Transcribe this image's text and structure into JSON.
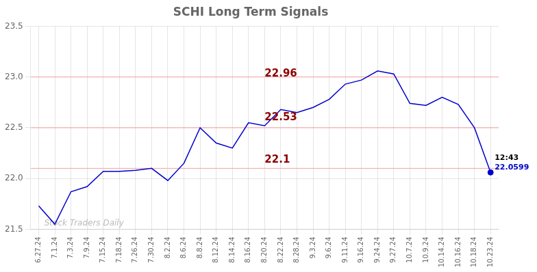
{
  "chart_data": {
    "type": "line",
    "title": "SCHI Long Term Signals",
    "watermark": "Stock Traders Daily",
    "categories": [
      "6.27.24",
      "7.1.24",
      "7.3.24",
      "7.9.24",
      "7.15.24",
      "7.18.24",
      "7.26.24",
      "7.30.24",
      "8.2.24",
      "8.6.24",
      "8.8.24",
      "8.12.24",
      "8.14.24",
      "8.16.24",
      "8.20.24",
      "8.22.24",
      "8.28.24",
      "9.3.24",
      "9.6.24",
      "9.11.24",
      "9.16.24",
      "9.24.24",
      "9.27.24",
      "10.7.24",
      "10.9.24",
      "10.14.24",
      "10.16.24",
      "10.18.24",
      "10.23.24"
    ],
    "values": [
      21.73,
      21.55,
      21.87,
      21.92,
      22.07,
      22.07,
      22.08,
      22.1,
      21.98,
      22.15,
      22.5,
      22.35,
      22.3,
      22.55,
      22.52,
      22.68,
      22.65,
      22.7,
      22.78,
      22.93,
      22.97,
      23.06,
      23.03,
      22.74,
      22.72,
      22.8,
      22.73,
      22.5,
      22.06
    ],
    "color": "#0000cc",
    "ylim": [
      21.5,
      23.5
    ],
    "yticks": [
      21.5,
      {
        "value": 22.0,
        "label": "22.0"
      },
      22.5,
      {
        "value": 23.0,
        "label": "23.0"
      },
      23.5
    ],
    "grid": true,
    "hlines": {
      "values": [
        23.0,
        22.5,
        22.1
      ],
      "color": "#f5a0a0"
    },
    "annotations": [
      {
        "text": "22.96",
        "x": "8.20.24",
        "y": 22.98,
        "color": "darkred"
      },
      {
        "text": "22.53",
        "x": "8.20.24",
        "y": 22.55,
        "color": "darkred"
      },
      {
        "text": "22.1",
        "x": "8.20.24",
        "y": 22.13,
        "color": "darkred"
      }
    ],
    "last_point": {
      "x": "10.23.24",
      "y": 22.0599,
      "color": "#0000cc",
      "time_text": "12:43",
      "value_text": "22.0599"
    }
  }
}
